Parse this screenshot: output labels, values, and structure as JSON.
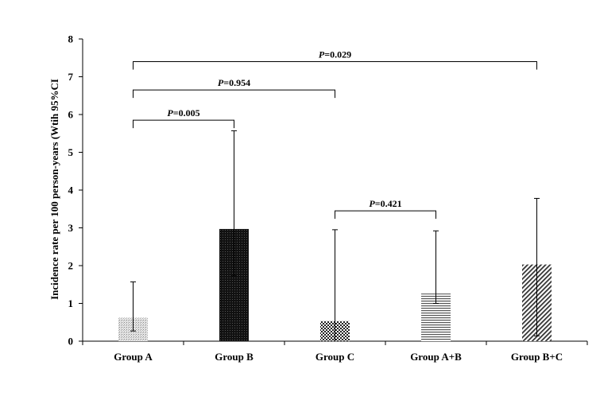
{
  "chart_data": {
    "type": "bar",
    "categories": [
      "Group A",
      "Group B",
      "Group C",
      "Group A+B",
      "Group B+C"
    ],
    "values": [
      0.62,
      2.97,
      0.53,
      1.26,
      2.03
    ],
    "ci_lower": [
      0.27,
      1.73,
      0.0,
      1.0,
      0.14
    ],
    "ci_upper": [
      1.57,
      5.57,
      2.95,
      2.92,
      3.78
    ],
    "patterns": [
      "dots-light",
      "dots-dark",
      "checker",
      "hlines",
      "diag"
    ],
    "ylabel": "Incidence rate per 100 person-years (Wtih 95%CI",
    "xlabel": "",
    "ylim": [
      0,
      8
    ],
    "yticks": [
      "0",
      "1",
      "2",
      "3",
      "4",
      "5",
      "6",
      "7",
      "8"
    ],
    "grid": false,
    "comparisons": [
      {
        "from": 0,
        "to": 4,
        "y": 7.4,
        "label_italic": "P",
        "label_rest": "=0.029"
      },
      {
        "from": 0,
        "to": 2,
        "y": 6.65,
        "label_italic": "P",
        "label_rest": "=0.954"
      },
      {
        "from": 0,
        "to": 1,
        "y": 5.85,
        "label_italic": "P",
        "label_rest": "=0.005"
      },
      {
        "from": 2,
        "to": 3,
        "y": 3.45,
        "label_italic": "P",
        "label_rest": "=0.421"
      }
    ]
  }
}
